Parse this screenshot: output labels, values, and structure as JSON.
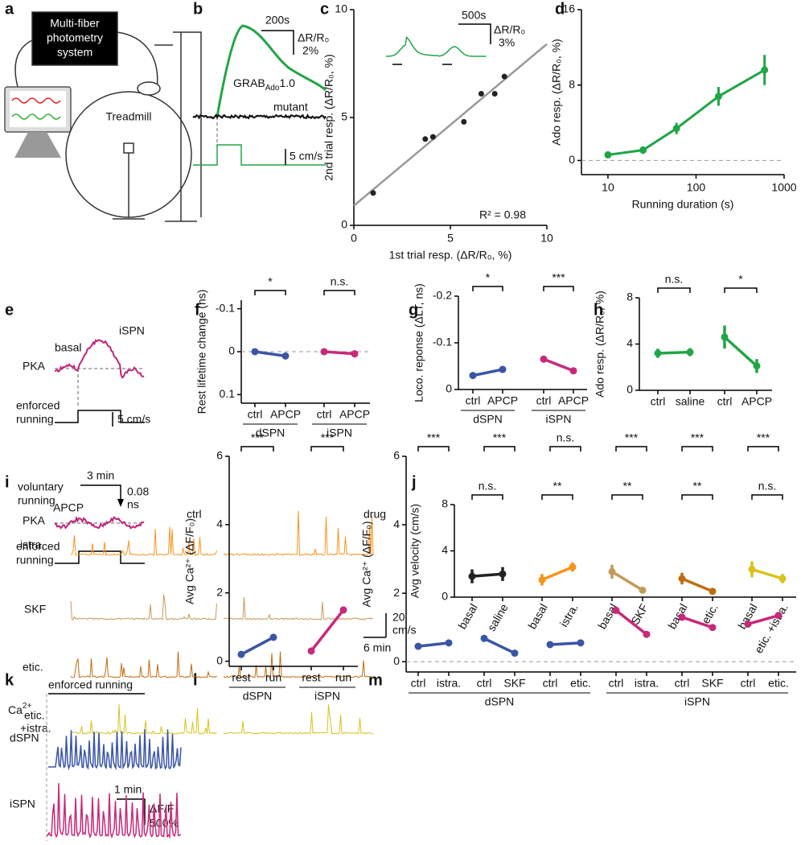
{
  "panel_labels": [
    "a",
    "b",
    "c",
    "d",
    "e",
    "f",
    "g",
    "h",
    "i",
    "j",
    "k",
    "l",
    "m"
  ],
  "a": {
    "system": [
      "Multi-fiber",
      "photometry",
      "system"
    ],
    "treadmill": "Treadmill"
  },
  "b": {
    "time_scale": "200s",
    "amp_scale": [
      "ΔR/R₀",
      "2%"
    ],
    "sensor": [
      "GRAB",
      "Ado",
      "1.0"
    ],
    "mutant": "mutant",
    "speed_scale": "5 cm/s"
  },
  "e": {
    "cell": "iSPN",
    "sensor": "PKA",
    "cond1": "basal",
    "running": [
      "enforced",
      "running"
    ],
    "speed_scale": "5 cm/s",
    "time_scale": "3 min",
    "amp_scale": [
      "0.08",
      "ns"
    ],
    "cond2": "APCP"
  },
  "i": {
    "title": [
      "voluntary",
      "running"
    ],
    "ctrl": "ctrl",
    "drug": "drug",
    "rows": [
      [
        "istra."
      ],
      [
        "SKF"
      ],
      [
        "etic."
      ],
      [
        "etic.",
        "+istra."
      ]
    ],
    "speed_scale": [
      "20",
      "cm/s"
    ],
    "time_scale": "6 min"
  },
  "k": {
    "ion": [
      "Ca",
      "2+"
    ],
    "running": "enforced running",
    "cells": [
      "dSPN",
      "iSPN"
    ],
    "time_scale": "1 min",
    "amp_scale": [
      "ΔF/F",
      "500%"
    ]
  },
  "chart_data": [
    {
      "type": "scatter",
      "xlabel": "1st trial resp. (ΔR/R₀, %)",
      "ylabel": "2nd trial resp. (ΔR/R₀, %)",
      "x": [
        1,
        3.7,
        4.1,
        5.7,
        6.6,
        7.3,
        7.8
      ],
      "y": [
        1.5,
        4,
        4.1,
        4.8,
        6.1,
        6.1,
        6.9
      ],
      "color": "#222222",
      "xlim": [
        0,
        10
      ],
      "ylim": [
        0,
        10
      ],
      "xticks": [
        0,
        5,
        10
      ],
      "yticks": [
        0,
        5,
        10
      ],
      "annotation": "R² = 0.98",
      "inset": {
        "time_scale": "500s",
        "amp_scale": [
          "ΔR/R₀",
          "3%"
        ]
      }
    },
    {
      "type": "line",
      "xlabel": "Running duration (s)",
      "ylabel": "Ado resp. (ΔR/R₀, %)",
      "log_x": true,
      "x": [
        10,
        25,
        60,
        180,
        600
      ],
      "series": [
        {
          "color": "#22a546",
          "values": [
            0.6,
            1.1,
            3.4,
            6.8,
            9.6
          ],
          "errors": [
            0.3,
            0.4,
            0.6,
            1.0,
            1.6
          ]
        }
      ],
      "xlim": [
        5,
        1000
      ],
      "ylim": [
        -1.5,
        16
      ],
      "xticks": [
        10,
        100,
        1000
      ],
      "yticks": [
        0,
        8,
        16
      ],
      "zero_line": true
    },
    {
      "type": "paired",
      "ylabel": "Rest lifetime change (ns)",
      "ylim": [
        0.12,
        -0.12
      ],
      "yticks": [
        -0.1,
        0,
        0.1
      ],
      "zero_line": true,
      "groups": [
        {
          "name": "dSPN",
          "categories": [
            "ctrl",
            "APCP"
          ],
          "values": [
            0,
            0.01
          ],
          "errors": [
            0.003,
            0.004
          ],
          "color": "#3a55a4",
          "significance": "*"
        },
        {
          "name": "iSPN",
          "categories": [
            "ctrl",
            "APCP"
          ],
          "values": [
            0,
            0.005
          ],
          "errors": [
            0.004,
            0.008
          ],
          "color": "#c8297a",
          "significance": "n.s."
        }
      ]
    },
    {
      "type": "paired",
      "ylabel": "Loco. reponse (ΔLT, ns)",
      "ylim": [
        0,
        -0.2
      ],
      "yticks": [
        0,
        -0.1,
        -0.2
      ],
      "groups": [
        {
          "name": "dSPN",
          "categories": [
            "ctrl",
            "APCP"
          ],
          "values": [
            -0.03,
            -0.043
          ],
          "errors": [
            0.004,
            0.005
          ],
          "color": "#3a55a4",
          "significance": "*"
        },
        {
          "name": "iSPN",
          "categories": [
            "ctrl",
            "APCP"
          ],
          "values": [
            -0.065,
            -0.04
          ],
          "errors": [
            0.005,
            0.004
          ],
          "color": "#c8297a",
          "significance": "***"
        }
      ]
    },
    {
      "type": "paired",
      "ylabel": "Ado resp. (ΔR/R₀, %)",
      "ylim": [
        0,
        8
      ],
      "yticks": [
        0,
        4,
        8
      ],
      "groups": [
        {
          "categories": [
            "ctrl",
            "saline"
          ],
          "values": [
            3.2,
            3.3
          ],
          "errors": [
            0.4,
            0.35
          ],
          "color": "#22a546",
          "significance": "n.s."
        },
        {
          "categories": [
            "ctrl",
            "APCP"
          ],
          "values": [
            4.6,
            2.1
          ],
          "errors": [
            1.0,
            0.6
          ],
          "color": "#22a546",
          "significance": "*"
        }
      ]
    },
    {
      "type": "paired",
      "ylabel": "Avg velocity (cm/s)",
      "ylim": [
        0,
        8
      ],
      "yticks": [
        0,
        4,
        8
      ],
      "rotate_categories": true,
      "groups": [
        {
          "categories": [
            "basal",
            "saline"
          ],
          "values": [
            1.8,
            2.0
          ],
          "errors": [
            0.6,
            0.6
          ],
          "color": "#222222",
          "significance": "n.s."
        },
        {
          "categories": [
            "basal",
            "istra."
          ],
          "values": [
            1.5,
            2.6
          ],
          "errors": [
            0.5,
            0.4
          ],
          "color": "#f7941d",
          "significance": "**"
        },
        {
          "categories": [
            "basal",
            "SKF"
          ],
          "values": [
            2.2,
            0.6
          ],
          "errors": [
            0.6,
            0.15
          ],
          "color": "#c49a5a",
          "significance": "**"
        },
        {
          "categories": [
            "basal",
            "etic."
          ],
          "values": [
            1.6,
            0.5
          ],
          "errors": [
            0.5,
            0.1
          ],
          "color": "#c06c12",
          "significance": "**"
        },
        {
          "categories": [
            "basal",
            "etic. +istra."
          ],
          "values": [
            2.4,
            1.6
          ],
          "errors": [
            0.7,
            0.4
          ],
          "color": "#d9c21a",
          "significance": "n.s."
        }
      ]
    },
    {
      "type": "paired",
      "ylabel": "Avg Ca²⁺ (ΔF/F₀)",
      "ylim": [
        -0.15,
        6
      ],
      "yticks": [
        0,
        2,
        4,
        6
      ],
      "groups": [
        {
          "name": "dSPN",
          "categories": [
            "rest",
            "run"
          ],
          "values": [
            0.2,
            0.7
          ],
          "errors": [
            0.03,
            0.05
          ],
          "color": "#3a55a4",
          "significance": "***"
        },
        {
          "name": "iSPN",
          "categories": [
            "rest",
            "run"
          ],
          "values": [
            0.3,
            1.5
          ],
          "errors": [
            0.04,
            0.1
          ],
          "color": "#c8297a",
          "significance": "***"
        }
      ]
    },
    {
      "type": "paired",
      "ylabel": "Avg Ca²⁺ (ΔF/F₀)",
      "ylim": [
        -0.3,
        6
      ],
      "yticks": [
        0,
        2,
        4,
        6
      ],
      "zero_line": true,
      "group_labels": [
        "dSPN",
        "iSPN"
      ],
      "groups": [
        {
          "categories": [
            "ctrl",
            "istra."
          ],
          "values": [
            0.45,
            0.55
          ],
          "errors": [
            0.05,
            0.05
          ],
          "color": "#3a55a4",
          "significance": "***"
        },
        {
          "categories": [
            "ctrl",
            "SKF"
          ],
          "values": [
            0.68,
            0.25
          ],
          "errors": [
            0.06,
            0.04
          ],
          "color": "#3a55a4",
          "significance": "***"
        },
        {
          "categories": [
            "ctrl",
            "etic."
          ],
          "values": [
            0.5,
            0.55
          ],
          "errors": [
            0.05,
            0.06
          ],
          "color": "#3a55a4",
          "significance": "n.s."
        },
        {
          "categories": [
            "ctrl",
            "istra."
          ],
          "values": [
            1.5,
            0.8
          ],
          "errors": [
            0.1,
            0.07
          ],
          "color": "#c8297a",
          "significance": "***"
        },
        {
          "categories": [
            "ctrl",
            "SKF"
          ],
          "values": [
            1.3,
            1.0
          ],
          "errors": [
            0.1,
            0.07
          ],
          "color": "#c8297a",
          "significance": "***"
        },
        {
          "categories": [
            "ctrl",
            "etic."
          ],
          "values": [
            1.1,
            1.35
          ],
          "errors": [
            0.08,
            0.1
          ],
          "color": "#c8297a",
          "significance": "***"
        }
      ]
    }
  ]
}
